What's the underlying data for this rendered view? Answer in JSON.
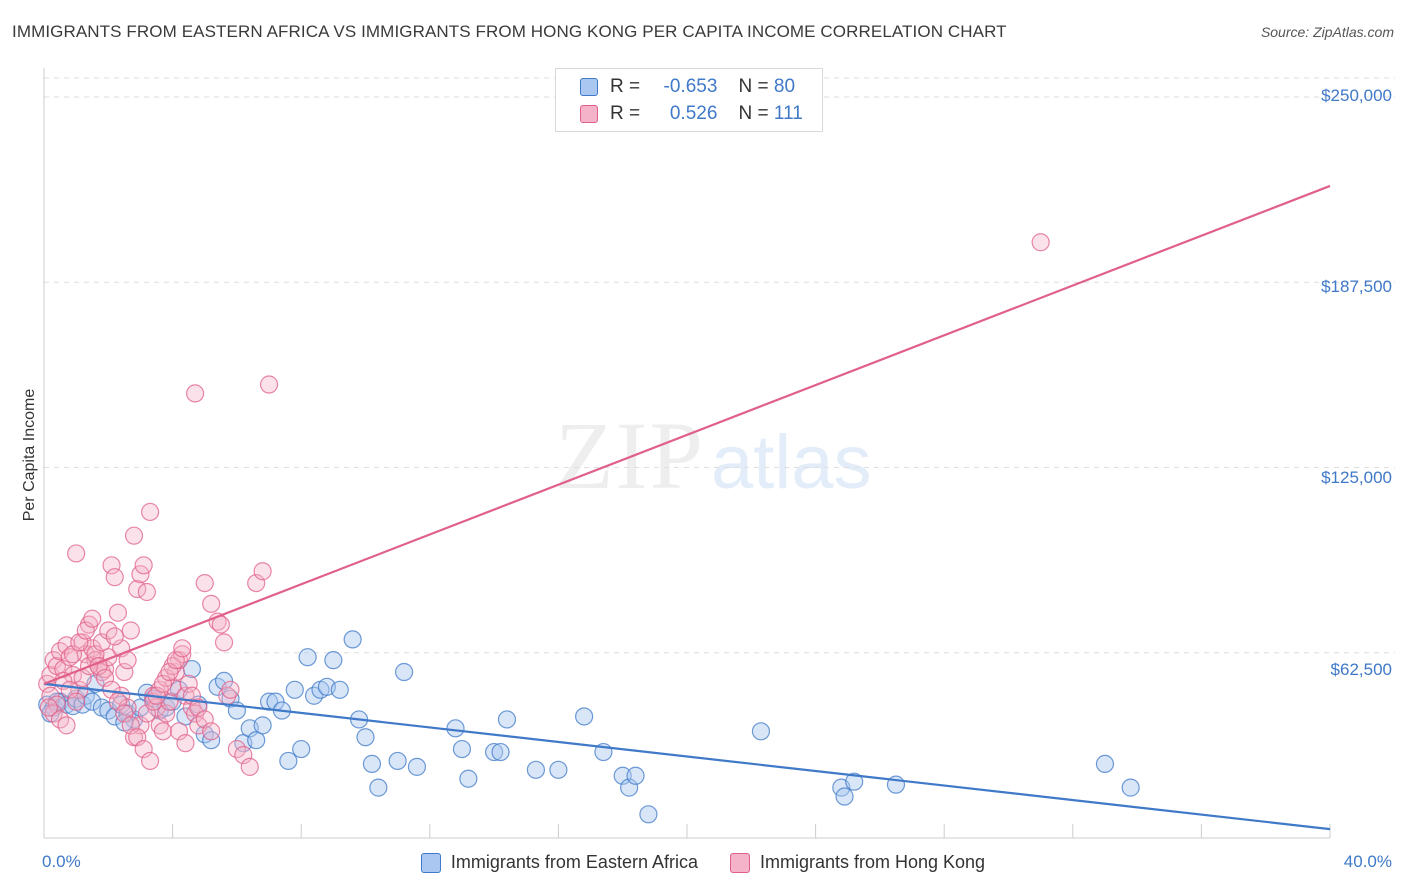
{
  "title": "IMMIGRANTS FROM EASTERN AFRICA VS IMMIGRANTS FROM HONG KONG PER CAPITA INCOME CORRELATION CHART",
  "source": "Source: ZipAtlas.com",
  "watermark": {
    "zip": "ZIP",
    "atlas": "atlas"
  },
  "legend": {
    "rows": [
      {
        "r_label": "R =",
        "r_value": "-0.653",
        "n_label": "N =",
        "n_value": "80"
      },
      {
        "r_label": "R =",
        "r_value": "0.526",
        "n_label": "N =",
        "n_value": "111"
      }
    ]
  },
  "chart_data": {
    "type": "scatter",
    "title": "IMMIGRANTS FROM EASTERN AFRICA VS IMMIGRANTS FROM HONG KONG PER CAPITA INCOME CORRELATION CHART",
    "xlabel": "",
    "ylabel": "Per Capita Income",
    "xlim": [
      0,
      40
    ],
    "ylim": [
      0,
      250000
    ],
    "x_tick_labels": [
      "0.0%",
      "40.0%"
    ],
    "y_ticks": [
      62500,
      125000,
      187500,
      250000
    ],
    "y_tick_labels": [
      "$62,500",
      "$125,000",
      "$187,500",
      "$250,000"
    ],
    "grid": "horizontal dashed",
    "legend_position": "top-center",
    "colors": {
      "blue": "#3f79c8",
      "blue_fill": "#a9c7f0",
      "pink": "#e0608a",
      "pink_fill": "#f4b3c8"
    },
    "series": [
      {
        "name": "Immigrants from Eastern Africa",
        "color": "#3f79c8",
        "trend": {
          "x": [
            0,
            40
          ],
          "y": [
            52000,
            3000
          ]
        },
        "points": [
          [
            0.1,
            45000
          ],
          [
            0.3,
            44000
          ],
          [
            0.5,
            46000
          ],
          [
            0.7,
            45000
          ],
          [
            0.9,
            44500
          ],
          [
            1.0,
            47000
          ],
          [
            1.2,
            45000
          ],
          [
            1.3,
            48000
          ],
          [
            1.5,
            46000
          ],
          [
            1.6,
            52000
          ],
          [
            1.8,
            44000
          ],
          [
            2.0,
            43000
          ],
          [
            2.2,
            41000
          ],
          [
            2.4,
            45000
          ],
          [
            2.6,
            42000
          ],
          [
            2.8,
            40000
          ],
          [
            3.0,
            44000
          ],
          [
            3.2,
            49000
          ],
          [
            3.4,
            47000
          ],
          [
            3.6,
            43000
          ],
          [
            3.8,
            44000
          ],
          [
            4.0,
            46000
          ],
          [
            4.2,
            50000
          ],
          [
            4.4,
            41000
          ],
          [
            4.6,
            57000
          ],
          [
            4.8,
            45000
          ],
          [
            5.0,
            35000
          ],
          [
            5.2,
            33000
          ],
          [
            5.4,
            51000
          ],
          [
            5.6,
            53000
          ],
          [
            5.8,
            47000
          ],
          [
            6.0,
            43000
          ],
          [
            6.2,
            32000
          ],
          [
            6.4,
            37000
          ],
          [
            6.6,
            33000
          ],
          [
            6.8,
            38000
          ],
          [
            7.0,
            46000
          ],
          [
            7.2,
            46000
          ],
          [
            7.4,
            43000
          ],
          [
            7.6,
            26000
          ],
          [
            7.8,
            50000
          ],
          [
            8.0,
            30000
          ],
          [
            8.2,
            61000
          ],
          [
            8.4,
            48000
          ],
          [
            8.6,
            50000
          ],
          [
            8.8,
            51000
          ],
          [
            9.0,
            60000
          ],
          [
            9.2,
            50000
          ],
          [
            9.6,
            67000
          ],
          [
            9.8,
            40000
          ],
          [
            10.0,
            34000
          ],
          [
            10.2,
            25000
          ],
          [
            10.4,
            17000
          ],
          [
            11.0,
            26000
          ],
          [
            11.2,
            56000
          ],
          [
            11.6,
            24000
          ],
          [
            12.8,
            37000
          ],
          [
            13.0,
            30000
          ],
          [
            13.2,
            20000
          ],
          [
            14.0,
            29000
          ],
          [
            14.2,
            29000
          ],
          [
            14.4,
            40000
          ],
          [
            15.3,
            23000
          ],
          [
            16.0,
            23000
          ],
          [
            16.8,
            41000
          ],
          [
            17.4,
            29000
          ],
          [
            18.0,
            21000
          ],
          [
            18.2,
            17000
          ],
          [
            18.4,
            21000
          ],
          [
            18.8,
            8000
          ],
          [
            22.3,
            36000
          ],
          [
            24.8,
            17000
          ],
          [
            24.9,
            14000
          ],
          [
            25.2,
            19000
          ],
          [
            26.5,
            18000
          ],
          [
            33.0,
            25000
          ],
          [
            33.8,
            17000
          ],
          [
            0.2,
            42000
          ],
          [
            0.4,
            46000
          ],
          [
            2.5,
            39000
          ]
        ]
      },
      {
        "name": "Immigrants from Hong Kong",
        "color": "#e0608a",
        "trend": {
          "x": [
            0,
            40
          ],
          "y": [
            52000,
            220000
          ]
        },
        "points": [
          [
            0.1,
            52000
          ],
          [
            0.2,
            55000
          ],
          [
            0.3,
            60000
          ],
          [
            0.4,
            58000
          ],
          [
            0.5,
            63000
          ],
          [
            0.6,
            57000
          ],
          [
            0.7,
            65000
          ],
          [
            0.8,
            61000
          ],
          [
            0.9,
            55000
          ],
          [
            1.0,
            96000
          ],
          [
            1.1,
            50000
          ],
          [
            1.2,
            66000
          ],
          [
            1.3,
            62000
          ],
          [
            1.4,
            72000
          ],
          [
            1.5,
            64000
          ],
          [
            1.6,
            60000
          ],
          [
            1.7,
            58000
          ],
          [
            1.8,
            56000
          ],
          [
            1.9,
            57000
          ],
          [
            2.0,
            61000
          ],
          [
            2.1,
            92000
          ],
          [
            2.2,
            88000
          ],
          [
            2.3,
            76000
          ],
          [
            2.4,
            64000
          ],
          [
            2.5,
            56000
          ],
          [
            2.6,
            60000
          ],
          [
            2.7,
            70000
          ],
          [
            2.8,
            102000
          ],
          [
            2.9,
            84000
          ],
          [
            3.0,
            89000
          ],
          [
            3.1,
            92000
          ],
          [
            3.2,
            83000
          ],
          [
            3.3,
            110000
          ],
          [
            3.4,
            48000
          ],
          [
            3.5,
            44000
          ],
          [
            3.6,
            38000
          ],
          [
            3.7,
            36000
          ],
          [
            3.8,
            42000
          ],
          [
            3.9,
            46000
          ],
          [
            4.0,
            51000
          ],
          [
            4.1,
            56000
          ],
          [
            4.2,
            60000
          ],
          [
            4.3,
            62000
          ],
          [
            4.4,
            48000
          ],
          [
            4.5,
            52000
          ],
          [
            4.6,
            44000
          ],
          [
            4.7,
            42000
          ],
          [
            4.8,
            38000
          ],
          [
            5.0,
            86000
          ],
          [
            5.2,
            79000
          ],
          [
            5.4,
            73000
          ],
          [
            5.5,
            72000
          ],
          [
            5.6,
            66000
          ],
          [
            5.7,
            48000
          ],
          [
            5.8,
            50000
          ],
          [
            6.0,
            30000
          ],
          [
            6.2,
            28000
          ],
          [
            6.4,
            24000
          ],
          [
            6.6,
            86000
          ],
          [
            6.8,
            90000
          ],
          [
            4.7,
            150000
          ],
          [
            7.0,
            153000
          ],
          [
            0.2,
            48000
          ],
          [
            0.4,
            45000
          ],
          [
            0.6,
            53000
          ],
          [
            0.8,
            50000
          ],
          [
            1.0,
            46000
          ],
          [
            1.2,
            54000
          ],
          [
            1.4,
            58000
          ],
          [
            1.6,
            62000
          ],
          [
            1.8,
            66000
          ],
          [
            2.0,
            70000
          ],
          [
            2.2,
            68000
          ],
          [
            2.4,
            48000
          ],
          [
            2.6,
            44000
          ],
          [
            2.8,
            34000
          ],
          [
            3.0,
            38000
          ],
          [
            3.2,
            42000
          ],
          [
            3.4,
            46000
          ],
          [
            3.6,
            50000
          ],
          [
            3.8,
            54000
          ],
          [
            4.0,
            58000
          ],
          [
            4.2,
            36000
          ],
          [
            4.4,
            32000
          ],
          [
            4.6,
            48000
          ],
          [
            4.8,
            44000
          ],
          [
            5.0,
            40000
          ],
          [
            5.2,
            36000
          ],
          [
            0.3,
            42000
          ],
          [
            0.5,
            40000
          ],
          [
            0.7,
            38000
          ],
          [
            0.9,
            62000
          ],
          [
            1.1,
            66000
          ],
          [
            1.3,
            70000
          ],
          [
            1.5,
            74000
          ],
          [
            1.7,
            58000
          ],
          [
            1.9,
            54000
          ],
          [
            2.1,
            50000
          ],
          [
            2.3,
            46000
          ],
          [
            2.5,
            42000
          ],
          [
            2.7,
            38000
          ],
          [
            2.9,
            34000
          ],
          [
            3.1,
            30000
          ],
          [
            3.3,
            26000
          ],
          [
            3.5,
            48000
          ],
          [
            3.7,
            52000
          ],
          [
            3.9,
            56000
          ],
          [
            4.1,
            60000
          ],
          [
            4.3,
            64000
          ],
          [
            31.0,
            201000
          ],
          [
            0.15,
            44000
          ]
        ]
      }
    ]
  },
  "bottom_legend": [
    "Immigrants from Eastern Africa",
    "Immigrants from Hong Kong"
  ]
}
